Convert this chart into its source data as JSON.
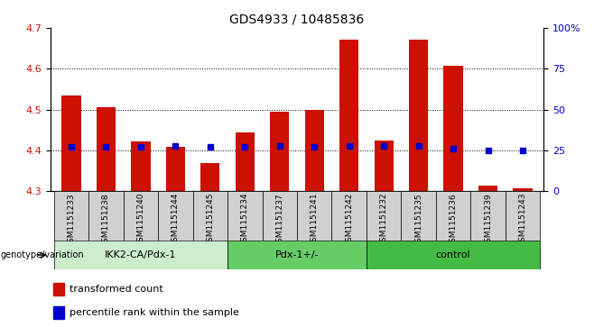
{
  "title": "GDS4933 / 10485836",
  "samples": [
    "GSM1151233",
    "GSM1151238",
    "GSM1151240",
    "GSM1151244",
    "GSM1151245",
    "GSM1151234",
    "GSM1151237",
    "GSM1151241",
    "GSM1151242",
    "GSM1151232",
    "GSM1151235",
    "GSM1151236",
    "GSM1151239",
    "GSM1151243"
  ],
  "transformed_counts": [
    4.535,
    4.505,
    4.423,
    4.408,
    4.368,
    4.445,
    4.495,
    4.5,
    4.672,
    4.425,
    4.672,
    4.607,
    4.315,
    4.307
  ],
  "percentile_ranks": [
    27,
    27,
    27,
    28,
    27,
    27,
    28,
    27,
    28,
    28,
    28,
    26,
    25,
    25
  ],
  "baseline": 4.3,
  "ylim_left": [
    4.3,
    4.7
  ],
  "ylim_right": [
    0,
    100
  ],
  "yticks_left": [
    4.3,
    4.4,
    4.5,
    4.6,
    4.7
  ],
  "yticks_right": [
    0,
    25,
    50,
    75,
    100
  ],
  "ytick_labels_right": [
    "0",
    "25",
    "50",
    "75",
    "100%"
  ],
  "groups": [
    {
      "label": "IKK2-CA/Pdx-1",
      "start": 0,
      "end": 5,
      "color": "#cceecc"
    },
    {
      "label": "Pdx-1+/-",
      "start": 5,
      "end": 9,
      "color": "#66cc66"
    },
    {
      "label": "control",
      "start": 9,
      "end": 14,
      "color": "#44bb44"
    }
  ],
  "bar_color": "#cc1100",
  "dot_color": "#0000cc",
  "bar_width": 0.55,
  "genotype_label": "genotype/variation",
  "legend_labels": [
    "transformed count",
    "percentile rank within the sample"
  ],
  "background_color": "#ffffff",
  "tick_area_color": "#d0d0d0"
}
